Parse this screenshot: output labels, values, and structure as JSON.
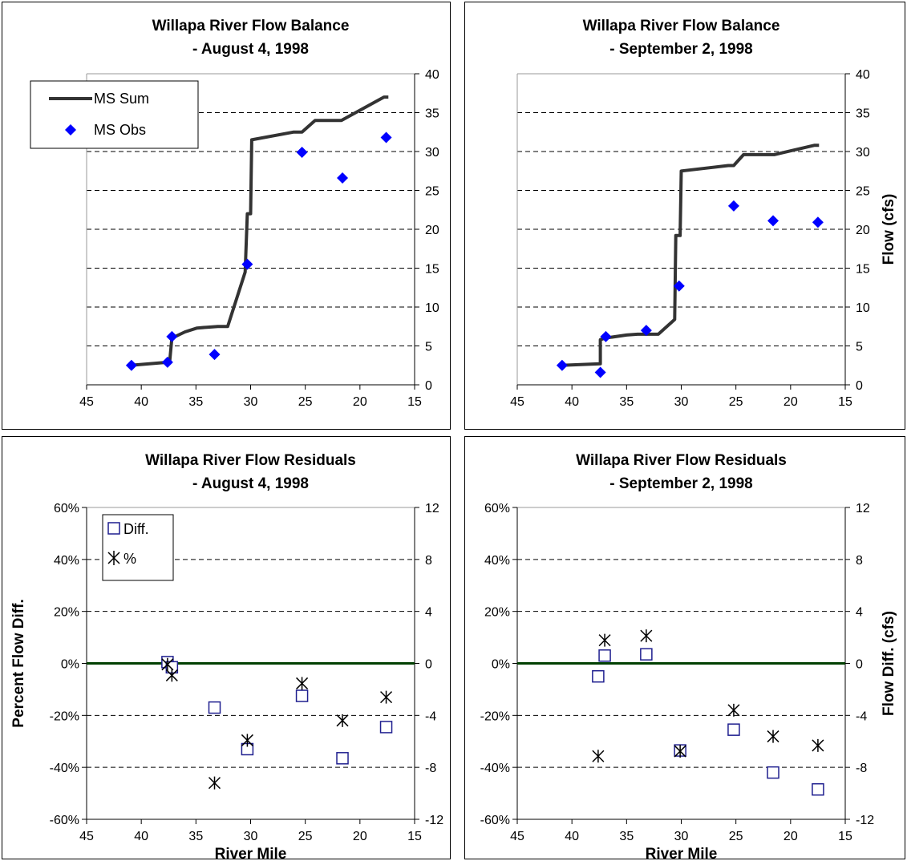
{
  "colors": {
    "sum_line": "#333333",
    "obs_marker": "#0000FF",
    "diff_marker": "#1F1F8F",
    "pct_marker": "#000000",
    "zero_line": "#004000",
    "grid": "#000000"
  },
  "chart_data": [
    {
      "type": "line",
      "id": "balance_aug",
      "title": [
        "Willapa River Flow Balance",
        "- August 4, 1998"
      ],
      "xlabel": "",
      "ylabel_left": "",
      "ylabel_right": "",
      "x_reversed": true,
      "xlim": [
        45,
        15
      ],
      "xticks": [
        45,
        40,
        35,
        30,
        25,
        20,
        15
      ],
      "ylim_right": [
        0,
        40
      ],
      "yticks_right": [
        0,
        5,
        10,
        15,
        20,
        25,
        30,
        35,
        40
      ],
      "grid": "horizontal-dashed",
      "legend": {
        "placement": "top-left",
        "entries": [
          "MS Sum",
          "MS Obs"
        ]
      },
      "series": [
        {
          "name": "MS Sum",
          "kind": "line",
          "x": [
            41,
            37.6,
            37.4,
            37.2,
            36.0,
            34.9,
            34.0,
            33.0,
            32.1,
            30.5,
            30.3,
            30.2,
            30.0,
            29.9,
            26.1,
            25.3,
            24.1,
            21.7,
            17.8,
            17.4
          ],
          "y": [
            2.5,
            2.9,
            3.0,
            6.0,
            6.8,
            7.3,
            7.4,
            7.5,
            7.5,
            14.5,
            22.0,
            22.0,
            22.0,
            31.5,
            32.5,
            32.5,
            34.0,
            34.0,
            37.0,
            37.0
          ]
        },
        {
          "name": "MS Obs",
          "kind": "marker",
          "x": [
            40.9,
            37.6,
            37.2,
            33.3,
            30.3,
            25.3,
            21.6,
            17.6
          ],
          "y": [
            2.5,
            2.9,
            6.2,
            3.9,
            15.5,
            29.9,
            26.6,
            31.8
          ]
        }
      ]
    },
    {
      "type": "line",
      "id": "balance_sep",
      "title": [
        "Willapa River Flow Balance",
        "- September 2, 1998"
      ],
      "xlabel": "",
      "ylabel_left": "",
      "ylabel_right": "Flow (cfs)",
      "x_reversed": true,
      "xlim": [
        45,
        15
      ],
      "xticks": [
        45,
        40,
        35,
        30,
        25,
        20,
        15
      ],
      "ylim_right": [
        0,
        40
      ],
      "yticks_right": [
        0,
        5,
        10,
        15,
        20,
        25,
        30,
        35,
        40
      ],
      "grid": "horizontal-dashed",
      "series": [
        {
          "name": "MS Sum",
          "kind": "line",
          "x": [
            41,
            37.4,
            37.4,
            37.0,
            35.0,
            34.0,
            32.5,
            32.1,
            30.6,
            30.5,
            30.3,
            30.1,
            30.0,
            25.7,
            25.2,
            24.3,
            21.5,
            17.8,
            17.4
          ],
          "y": [
            2.5,
            2.7,
            5.8,
            6.0,
            6.4,
            6.5,
            6.5,
            6.5,
            8.4,
            19.2,
            19.2,
            19.2,
            27.5,
            28.2,
            28.2,
            29.6,
            29.6,
            30.8,
            30.8
          ]
        },
        {
          "name": "MS Obs",
          "kind": "marker",
          "x": [
            40.9,
            37.4,
            36.9,
            33.2,
            30.2,
            25.2,
            21.6,
            17.5
          ],
          "y": [
            2.5,
            1.6,
            6.2,
            7.0,
            12.7,
            23.0,
            21.1,
            20.9
          ]
        }
      ]
    },
    {
      "type": "scatter",
      "id": "residuals_aug",
      "title": [
        "Willapa River Flow Residuals",
        "- August 4, 1998"
      ],
      "xlabel": "River Mile",
      "ylabel_left": "Percent Flow Diff.",
      "ylabel_right": "",
      "x_reversed": true,
      "xlim": [
        45,
        15
      ],
      "xticks": [
        45,
        40,
        35,
        30,
        25,
        20,
        15
      ],
      "ylim_left": [
        -60,
        60
      ],
      "yticks_left": [
        "-60%",
        "-40%",
        "-20%",
        "0%",
        "20%",
        "40%",
        "60%"
      ],
      "ylim_right": [
        -12,
        12
      ],
      "yticks_right": [
        -12,
        -8,
        -4,
        0,
        4,
        8,
        12
      ],
      "grid": "horizontal-dashed",
      "legend": {
        "placement": "top-left",
        "entries": [
          "Diff.",
          "%"
        ]
      },
      "series": [
        {
          "name": "Diff.",
          "kind": "square",
          "axis": "right",
          "x": [
            37.6,
            37.2,
            33.3,
            30.3,
            25.3,
            21.6,
            17.6
          ],
          "y": [
            0.1,
            -0.3,
            -3.4,
            -6.6,
            -2.5,
            -7.3,
            -4.9
          ]
        },
        {
          "name": "%",
          "kind": "asterisk",
          "axis": "left",
          "x": [
            37.6,
            37.2,
            33.3,
            30.3,
            25.3,
            21.6,
            17.6
          ],
          "y": [
            -0.4,
            -4.6,
            -46,
            -29.6,
            -7.7,
            -22,
            -13
          ]
        }
      ]
    },
    {
      "type": "scatter",
      "id": "residuals_sep",
      "title": [
        "Willapa River Flow Residuals",
        "- September 2, 1998"
      ],
      "xlabel": "River Mile",
      "ylabel_left": "",
      "ylabel_right": "Flow Diff. (cfs)",
      "x_reversed": true,
      "xlim": [
        45,
        15
      ],
      "xticks": [
        45,
        40,
        35,
        30,
        25,
        20,
        15
      ],
      "ylim_left": [
        -60,
        60
      ],
      "yticks_left": [
        "-60%",
        "-40%",
        "-20%",
        "0%",
        "20%",
        "40%",
        "60%"
      ],
      "ylim_right": [
        -12,
        12
      ],
      "yticks_right": [
        -12,
        -8,
        -4,
        0,
        4,
        8,
        12
      ],
      "grid": "horizontal-dashed",
      "series": [
        {
          "name": "Diff.",
          "kind": "square",
          "axis": "right",
          "x": [
            37.6,
            37.0,
            33.2,
            30.1,
            25.2,
            21.6,
            17.5
          ],
          "y": [
            -1.0,
            0.6,
            0.7,
            -6.7,
            -5.1,
            -8.4,
            -9.7
          ]
        },
        {
          "name": "%",
          "kind": "asterisk",
          "axis": "left",
          "x": [
            37.6,
            37.0,
            33.2,
            30.1,
            25.2,
            21.6,
            17.5
          ],
          "y": [
            -35.7,
            8.9,
            10.6,
            -33.8,
            -18,
            -28.1,
            -31.6
          ]
        }
      ]
    }
  ]
}
